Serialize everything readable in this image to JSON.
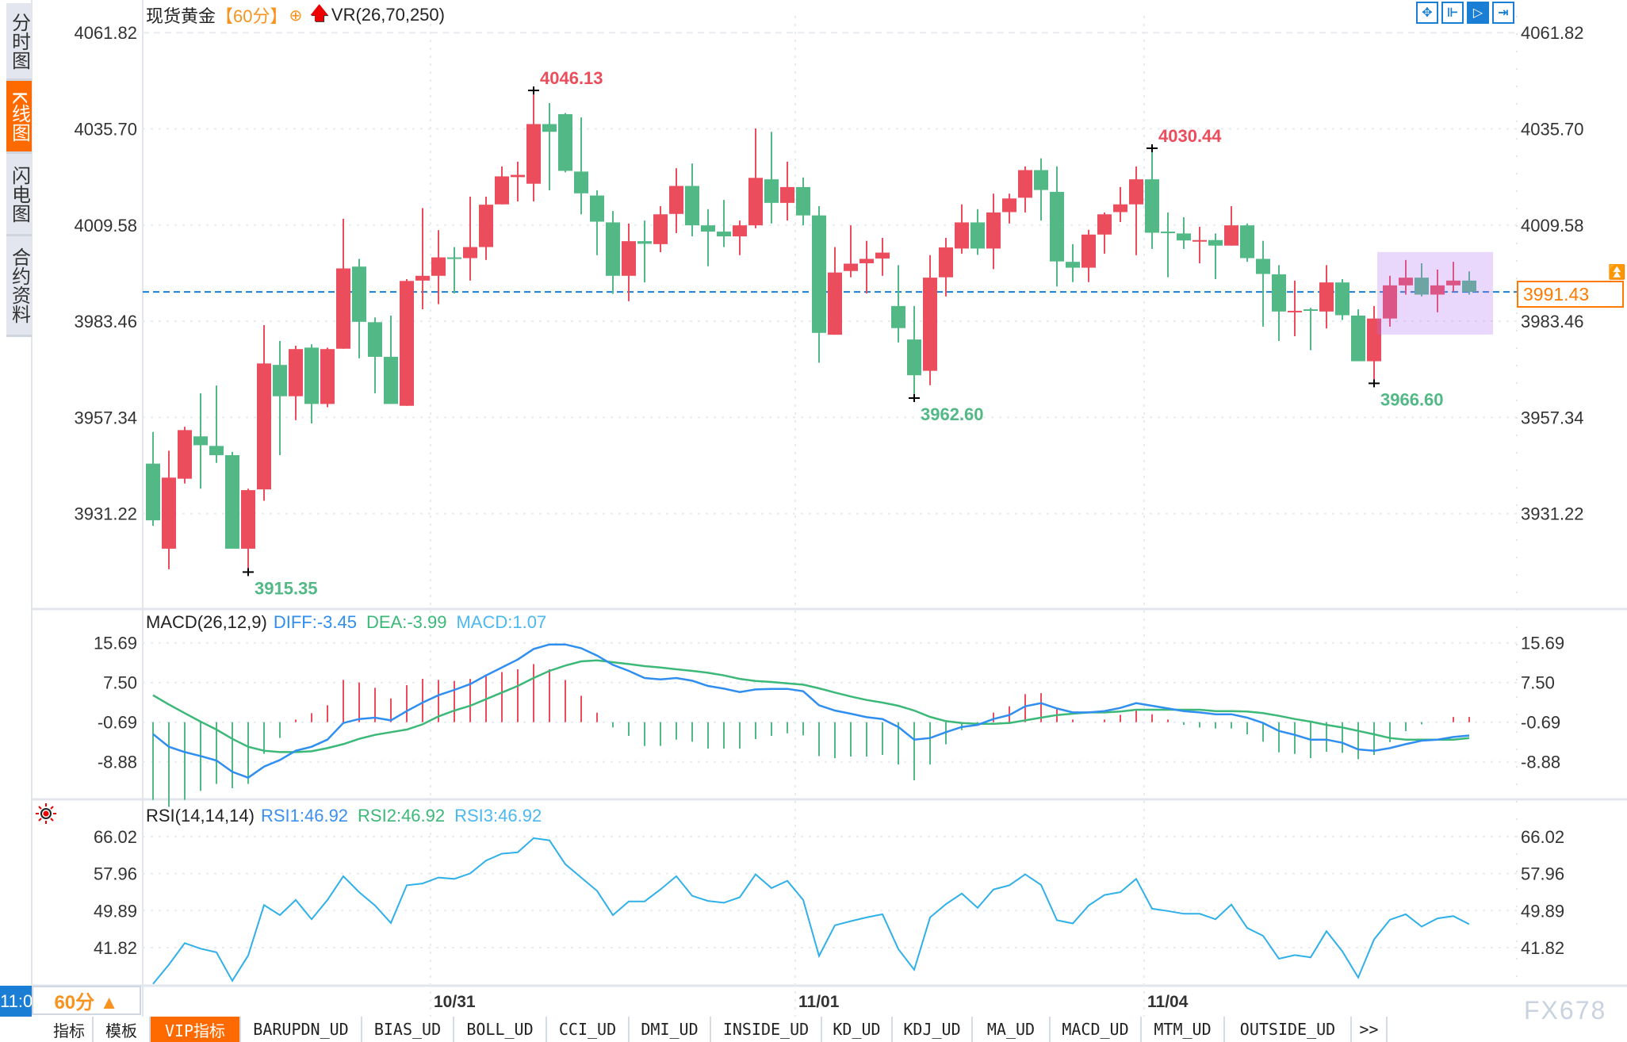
{
  "sidebar": {
    "items": [
      {
        "label": "分时图",
        "active": false
      },
      {
        "label": "K线图",
        "active": true
      },
      {
        "label": "闪电图",
        "active": false
      },
      {
        "label": "合约资料",
        "active": false
      }
    ]
  },
  "header": {
    "title": "现货黄金",
    "period": "【60分】",
    "add_icon": "circle-plus-icon",
    "arrow_icon": "red-up-arrow-icon",
    "indicator": "VR(26,70,250)"
  },
  "toolbar": {
    "icons": [
      "crosshair-icon",
      "range-select-icon",
      "auto-scroll-icon",
      "jump-to-latest-icon"
    ],
    "active_index": 2
  },
  "colors": {
    "up": "#eb4d5c",
    "down": "#52b986",
    "diff": "#2f8ef0",
    "dea": "#3cb878",
    "macd": "#4cb8f0",
    "rsi": "#2fb0e8",
    "accent": "#ff6a00",
    "current_price": "#1a7fd4",
    "highlight": "#ead6fc"
  },
  "price_axis": {
    "ticks": [
      "4061.82",
      "4035.70",
      "4009.58",
      "3983.46",
      "3957.34",
      "3931.22"
    ],
    "current_price": "3991.43"
  },
  "macd": {
    "label": "MACD(26,12,9)",
    "diff_label": "DIFF:-3.45",
    "dea_label": "DEA:-3.99",
    "macd_label": "MACD:1.07",
    "ticks": [
      "15.69",
      "7.50",
      "-0.69",
      "-8.88"
    ]
  },
  "rsi": {
    "label": "RSI(14,14,14)",
    "rsi1_label": "RSI1:46.92",
    "rsi2_label": "RSI2:46.92",
    "rsi3_label": "RSI3:46.92",
    "ticks": [
      "66.02",
      "57.96",
      "49.89",
      "41.82"
    ],
    "settings_icon": "indicator-settings-icon"
  },
  "x_axis": {
    "labels": [
      {
        "text": "10/31",
        "candle": 19
      },
      {
        "text": "11/01",
        "candle": 42
      },
      {
        "text": "11/04",
        "candle": 64
      }
    ]
  },
  "markers": [
    {
      "text": "4046.13",
      "kind": "high"
    },
    {
      "text": "3915.35",
      "kind": "low"
    },
    {
      "text": "3962.60",
      "kind": "low"
    },
    {
      "text": "4030.44",
      "kind": "high"
    },
    {
      "text": "3966.60",
      "kind": "low"
    }
  ],
  "chart_data": {
    "type": "candlestick",
    "ylim": [
      3915.35,
      4061.82
    ],
    "ohlc": [
      [
        3944.8,
        3953.4,
        3927.9,
        3929.4
      ],
      [
        3921.7,
        3948.3,
        3916.1,
        3941.0
      ],
      [
        3940.7,
        3954.8,
        3939.4,
        3953.9
      ],
      [
        3952.2,
        3963.9,
        3938.0,
        3949.8
      ],
      [
        3949.6,
        3966.0,
        3945.0,
        3947.1
      ],
      [
        3947.1,
        3948.0,
        3921.7,
        3921.7
      ],
      [
        3921.7,
        3938.0,
        3915.35,
        3937.6
      ],
      [
        3937.8,
        3982.4,
        3934.7,
        3972.0
      ],
      [
        3971.6,
        3978.1,
        3947.1,
        3963.1
      ],
      [
        3963.1,
        3976.8,
        3956.6,
        3975.9
      ],
      [
        3976.3,
        3977.2,
        3955.7,
        3961.0
      ],
      [
        3961.0,
        3976.3,
        3960.1,
        3975.9
      ],
      [
        3976.0,
        4011.3,
        3976.0,
        3997.8
      ],
      [
        3998.3,
        4000.4,
        3973.4,
        3983.3
      ],
      [
        3983.2,
        3984.5,
        3963.9,
        3973.8
      ],
      [
        3973.8,
        3985.0,
        3961.0,
        3961.0
      ],
      [
        3960.5,
        3994.9,
        3960.5,
        3994.4
      ],
      [
        3994.5,
        4014.2,
        3986.7,
        3995.8
      ],
      [
        3995.8,
        4008.2,
        3988.1,
        4000.8
      ],
      [
        4000.8,
        4003.6,
        3991.0,
        4000.6
      ],
      [
        4000.6,
        4017.3,
        3994.5,
        4003.6
      ],
      [
        4003.6,
        4017.3,
        4000.1,
        4015.1
      ],
      [
        4015.2,
        4025.5,
        4015.2,
        4022.8
      ],
      [
        4022.6,
        4026.8,
        4016.0,
        4023.2
      ],
      [
        4020.8,
        4046.13,
        4016.0,
        4037.0
      ],
      [
        4037.0,
        4042.7,
        4019.0,
        4034.9
      ],
      [
        4039.7,
        4040.0,
        4023.9,
        4024.3
      ],
      [
        4024.1,
        4038.8,
        4012.5,
        4018.2
      ],
      [
        4017.6,
        4019.0,
        4001.4,
        4010.5
      ],
      [
        4010.3,
        4013.4,
        3990.9,
        3995.8
      ],
      [
        3995.8,
        4010.0,
        3988.9,
        4005.2
      ],
      [
        4005.2,
        4010.8,
        3994.0,
        4004.5
      ],
      [
        4004.4,
        4014.7,
        4002.2,
        4012.5
      ],
      [
        4012.6,
        4025.0,
        4007.4,
        4020.2
      ],
      [
        4020.2,
        4026.3,
        4006.5,
        4009.5
      ],
      [
        4009.5,
        4013.9,
        3998.4,
        4007.8
      ],
      [
        4007.8,
        4016.4,
        4003.6,
        4006.5
      ],
      [
        4006.5,
        4010.8,
        4001.4,
        4009.5
      ],
      [
        4009.5,
        4035.8,
        4008.7,
        4022.4
      ],
      [
        4022.0,
        4034.9,
        4010.0,
        4015.6
      ],
      [
        4015.6,
        4026.8,
        4010.8,
        4019.9
      ],
      [
        4019.9,
        4022.5,
        4009.5,
        4012.2
      ],
      [
        4012.2,
        4014.7,
        3972.2,
        3980.3
      ],
      [
        3979.8,
        4003.6,
        3979.8,
        3996.7
      ],
      [
        3997.1,
        4009.5,
        3995.4,
        3999.1
      ],
      [
        3999.2,
        4005.3,
        3991.0,
        4000.4
      ],
      [
        4000.5,
        4006.1,
        3995.8,
        4002.1
      ],
      [
        3987.6,
        3998.7,
        3977.7,
        3981.6
      ],
      [
        3978.5,
        3987.6,
        3962.6,
        3968.8
      ],
      [
        3970.0,
        4001.4,
        3966.1,
        3995.3
      ],
      [
        3995.4,
        4006.1,
        3990.2,
        4003.5
      ],
      [
        4003.2,
        4015.2,
        4001.8,
        4010.3
      ],
      [
        4010.3,
        4013.9,
        4001.5,
        4003.2
      ],
      [
        4003.2,
        4018.1,
        3997.6,
        4013.0
      ],
      [
        4013.1,
        4018.1,
        4010.0,
        4016.8
      ],
      [
        4017.0,
        4025.5,
        4013.0,
        4024.5
      ],
      [
        4024.5,
        4027.7,
        4010.8,
        4019.1
      ],
      [
        4018.6,
        4025.5,
        3992.9,
        3999.7
      ],
      [
        3999.6,
        4004.4,
        3994.1,
        3998.0
      ],
      [
        3998.0,
        4008.3,
        3994.1,
        4007.0
      ],
      [
        4007.0,
        4013.0,
        4001.8,
        4012.5
      ],
      [
        4013.1,
        4019.9,
        4010.4,
        4015.2
      ],
      [
        4015.2,
        4025.5,
        4001.4,
        4022.0
      ],
      [
        4022.0,
        4030.44,
        4003.1,
        4007.5
      ],
      [
        4007.8,
        4013.0,
        3995.4,
        4007.5
      ],
      [
        4007.3,
        4011.7,
        4003.1,
        4005.4
      ],
      [
        4005.4,
        4009.1,
        3999.2,
        4005.5
      ],
      [
        4005.5,
        4007.3,
        3994.9,
        4004.0
      ],
      [
        4004.0,
        4014.7,
        4004.0,
        4009.5
      ],
      [
        4009.5,
        4010.0,
        3999.6,
        4000.6
      ],
      [
        4000.4,
        4005.3,
        3982.0,
        3996.3
      ],
      [
        3996.2,
        3998.7,
        3978.1,
        3986.1
      ],
      [
        3986.1,
        3994.5,
        3979.4,
        3986.3
      ],
      [
        3986.7,
        3987.1,
        3975.6,
        3986.4
      ],
      [
        3986.1,
        3998.7,
        3981.5,
        3994.0
      ],
      [
        3994.0,
        3994.9,
        3983.8,
        3985.1
      ],
      [
        3985.0,
        3986.7,
        3972.6,
        3972.6
      ],
      [
        3972.6,
        3987.6,
        3966.6,
        3984.2
      ],
      [
        3984.2,
        3995.8,
        3982.0,
        3993.2
      ],
      [
        3993.2,
        4000.1,
        3990.7,
        3995.3
      ],
      [
        3995.3,
        3999.2,
        3990.2,
        3990.7
      ],
      [
        3990.7,
        3997.5,
        3985.9,
        3993.2
      ],
      [
        3993.2,
        3999.6,
        3991.5,
        3994.5
      ],
      [
        3994.5,
        3997.0,
        3990.7,
        3991.43
      ]
    ],
    "highlight_range": [
      79,
      84
    ],
    "macd_ylim": [
      -8.88,
      15.69
    ],
    "diff": [
      -3.15,
      -5.77,
      -6.86,
      -7.68,
      -8.6,
      -10.95,
      -12.15,
      -9.86,
      -8.5,
      -6.59,
      -5.77,
      -4.29,
      -0.85,
      -0.03,
      0.24,
      -0.31,
      1.6,
      3.35,
      4.88,
      5.97,
      7.17,
      8.97,
      10.61,
      12.25,
      14.43,
      15.36,
      15.36,
      14.6,
      13.07,
      11.16,
      9.9,
      8.43,
      8.16,
      8.43,
      7.88,
      6.79,
      6.24,
      5.53,
      6.08,
      6.19,
      6.19,
      5.7,
      2.8,
      1.71,
      1.06,
      0.35,
      -0.03,
      -1.67,
      -4.29,
      -3.97,
      -2.76,
      -1.67,
      -1.24,
      -0.03,
      0.79,
      2.59,
      3.24,
      2.15,
      1.33,
      1.33,
      1.6,
      2.26,
      3.24,
      2.7,
      2.15,
      1.6,
      1.33,
      0.95,
      0.95,
      0.24,
      -0.85,
      -2.49,
      -3.31,
      -4.29,
      -4.29,
      -4.95,
      -6.31,
      -6.59,
      -6.04,
      -5.22,
      -4.51,
      -4.29,
      -3.75,
      -3.45
    ],
    "dea": [
      4.88,
      2.97,
      1.17,
      -0.58,
      -2.22,
      -4.13,
      -5.77,
      -6.59,
      -6.86,
      -6.86,
      -6.7,
      -6.04,
      -5.22,
      -4.13,
      -3.31,
      -2.76,
      -2.22,
      -1.13,
      0.51,
      1.71,
      2.7,
      4.06,
      5.43,
      6.79,
      8.43,
      9.9,
      11.0,
      11.87,
      12.09,
      11.7,
      11.32,
      10.89,
      10.61,
      10.23,
      9.9,
      9.52,
      8.97,
      8.26,
      7.83,
      7.61,
      7.34,
      7.06,
      6.3,
      5.43,
      4.61,
      3.9,
      3.35,
      2.7,
      1.71,
      0.4,
      -0.47,
      -0.85,
      -1.02,
      -1.02,
      -0.85,
      -0.31,
      0.24,
      0.79,
      1.06,
      1.33,
      1.33,
      1.5,
      1.88,
      1.88,
      1.88,
      1.88,
      1.88,
      1.6,
      1.6,
      1.5,
      1.17,
      0.62,
      -0.03,
      -0.58,
      -1.24,
      -1.78,
      -2.49,
      -3.2,
      -3.97,
      -4.29,
      -4.29,
      -4.29,
      -4.29,
      -3.99
    ],
    "rsi_ylim": [
      41.82,
      66.02
    ],
    "rsi": [
      33.9,
      38.1,
      42.8,
      41.6,
      40.8,
      34.6,
      40.1,
      51.1,
      48.9,
      52.2,
      48.0,
      52.2,
      57.4,
      53.9,
      51.0,
      47.2,
      55.4,
      55.8,
      57.1,
      56.8,
      58.0,
      60.8,
      62.3,
      62.6,
      65.7,
      65.2,
      60.0,
      57.1,
      54.2,
      48.9,
      51.9,
      51.9,
      54.5,
      57.4,
      53.1,
      52.0,
      51.6,
      52.8,
      57.8,
      54.8,
      56.4,
      52.2,
      40.0,
      46.7,
      47.6,
      48.4,
      49.1,
      41.5,
      37.0,
      48.4,
      51.3,
      53.6,
      50.5,
      54.5,
      55.4,
      57.8,
      55.5,
      47.8,
      47.1,
      51.0,
      53.3,
      53.9,
      56.8,
      50.3,
      49.8,
      49.2,
      49.2,
      48.0,
      51.2,
      46.1,
      44.4,
      39.4,
      40.2,
      39.7,
      45.4,
      41.0,
      35.3,
      43.6,
      47.9,
      49.1,
      46.4,
      48.2,
      48.7,
      46.92
    ]
  },
  "footer": {
    "time": "11:0",
    "period": "60分 ▲",
    "tabs": [
      "指标",
      "模板",
      "VIP指标",
      "BARUPDN_UD",
      "BIAS_UD",
      "BOLL_UD",
      "CCI_UD",
      "DMI_UD",
      "INSIDE_UD",
      "KD_UD",
      "KDJ_UD",
      "MA_UD",
      "MACD_UD",
      "MTM_UD",
      "OUTSIDE_UD",
      ">>"
    ],
    "active_tab": 2,
    "watermark": "FX678"
  }
}
